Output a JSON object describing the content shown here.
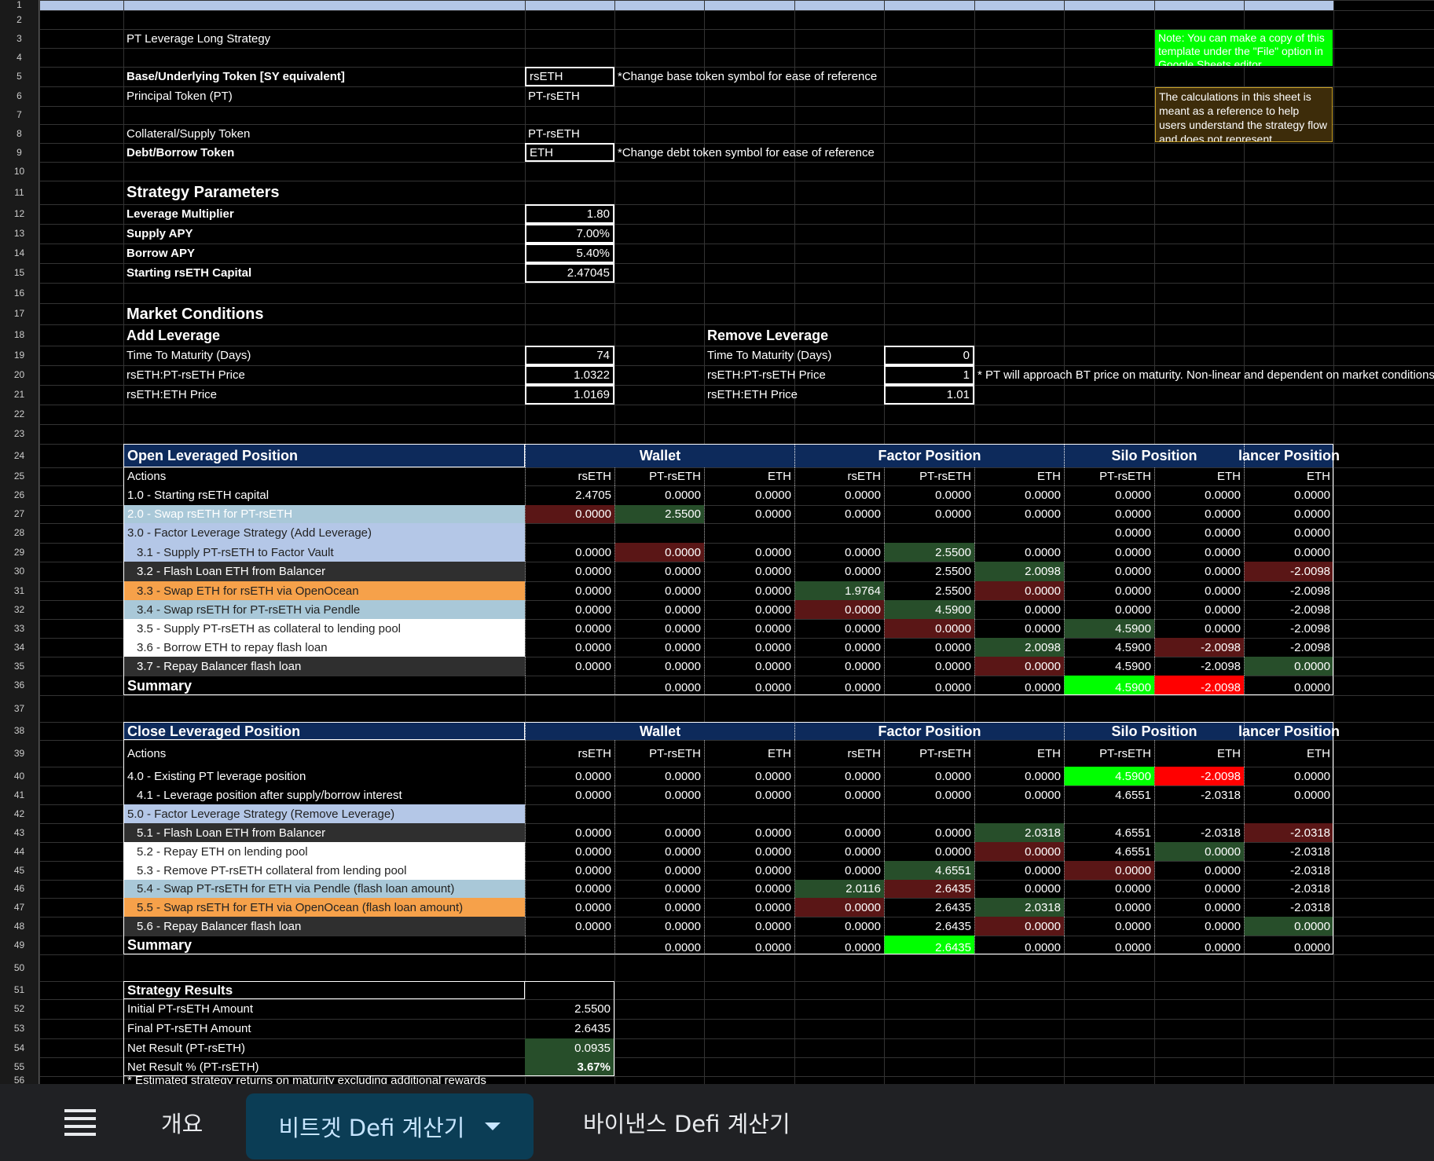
{
  "sheet": {
    "title": "PT Leverage Long Strategy",
    "note_green": "Note: You can make a copy of this template under the \"File\" option in Google Sheets editor",
    "note_brown": "The calculations in this sheet is meant as a reference to help users understand the strategy flow and does not represent",
    "labels": {
      "base_token": "Base/Underlying Token [SY equivalent]",
      "principal_token": "Principal Token (PT)",
      "collateral_token": "Collateral/Supply Token",
      "debt_token": "Debt/Borrow Token",
      "strategy_params": "Strategy Parameters",
      "leverage_multiplier": "Leverage Multiplier",
      "supply_apy": "Supply APY",
      "borrow_apy": "Borrow APY",
      "starting_capital": "Starting rsETH Capital",
      "market_conditions": "Market Conditions",
      "add_leverage": "Add Leverage",
      "remove_leverage": "Remove Leverage",
      "time_to_maturity": "Time To Maturity (Days)",
      "pt_price": "rsETH:PT-rsETH Price",
      "eth_price": "rsETH:ETH Price"
    },
    "values": {
      "base_token": "rsETH",
      "principal_token": "PT-rsETH",
      "collateral_token": "PT-rsETH",
      "debt_token": "ETH",
      "leverage_multiplier": "1.80",
      "supply_apy": "7.00%",
      "borrow_apy": "5.40%",
      "starting_capital": "2.47045",
      "add_time": "74",
      "add_pt_price": "1.0322",
      "add_eth_price": "1.0169",
      "rem_time": "0",
      "rem_pt_price": "1",
      "rem_eth_price": "1.01"
    },
    "notes": {
      "base_note": "*Change base token symbol for ease of reference",
      "debt_note": "*Change debt token symbol for ease of reference",
      "pt_note": "* PT will approach BT price on maturity. Non-linear and dependent on market conditions"
    }
  },
  "open_table": {
    "title": "Open Leveraged Position",
    "groups": [
      "Wallet",
      "Factor Position",
      "Silo Position",
      "lancer Position"
    ],
    "actions_label": "Actions",
    "columns": [
      "rsETH",
      "PT-rsETH",
      "ETH",
      "rsETH",
      "PT-rsETH",
      "ETH",
      "PT-rsETH",
      "ETH",
      "ETH"
    ],
    "rows": [
      {
        "label": "1.0 - Starting rsETH capital",
        "values": [
          "2.4705",
          "0.0000",
          "0.0000",
          "0.0000",
          "0.0000",
          "0.0000",
          "0.0000",
          "0.0000",
          "0.0000"
        ]
      },
      {
        "label": "2.0 - Swap rsETH for PT-rsETH",
        "values": [
          "0.0000",
          "2.5500",
          "0.0000",
          "0.0000",
          "0.0000",
          "0.0000",
          "0.0000",
          "0.0000",
          "0.0000"
        ]
      },
      {
        "label": "3.0 - Factor Leverage Strategy (Add Leverage)",
        "values": [
          "",
          "",
          "",
          "",
          "",
          "",
          "0.0000",
          "0.0000",
          "0.0000"
        ]
      },
      {
        "label": "3.1 - Supply PT-rsETH to Factor Vault",
        "values": [
          "0.0000",
          "0.0000",
          "0.0000",
          "0.0000",
          "2.5500",
          "0.0000",
          "0.0000",
          "0.0000",
          "0.0000"
        ]
      },
      {
        "label": "3.2 - Flash Loan ETH from Balancer",
        "values": [
          "0.0000",
          "0.0000",
          "0.0000",
          "0.0000",
          "2.5500",
          "2.0098",
          "0.0000",
          "0.0000",
          "-2.0098"
        ]
      },
      {
        "label": "3.3 - Swap ETH for rsETH via OpenOcean",
        "values": [
          "0.0000",
          "0.0000",
          "0.0000",
          "1.9764",
          "2.5500",
          "0.0000",
          "0.0000",
          "0.0000",
          "-2.0098"
        ]
      },
      {
        "label": "3.4 - Swap rsETH for PT-rsETH via Pendle",
        "values": [
          "0.0000",
          "0.0000",
          "0.0000",
          "0.0000",
          "4.5900",
          "0.0000",
          "0.0000",
          "0.0000",
          "-2.0098"
        ]
      },
      {
        "label": "3.5 - Supply PT-rsETH as collateral to lending pool",
        "values": [
          "0.0000",
          "0.0000",
          "0.0000",
          "0.0000",
          "0.0000",
          "0.0000",
          "4.5900",
          "0.0000",
          "-2.0098"
        ]
      },
      {
        "label": "3.6 - Borrow ETH to repay flash loan",
        "values": [
          "0.0000",
          "0.0000",
          "0.0000",
          "0.0000",
          "0.0000",
          "2.0098",
          "4.5900",
          "-2.0098",
          "-2.0098"
        ]
      },
      {
        "label": "3.7 - Repay Balancer flash loan",
        "values": [
          "0.0000",
          "0.0000",
          "0.0000",
          "0.0000",
          "0.0000",
          "0.0000",
          "4.5900",
          "-2.0098",
          "0.0000"
        ]
      }
    ],
    "summary": {
      "label": "Summary",
      "values": [
        "",
        "0.0000",
        "0.0000",
        "0.0000",
        "0.0000",
        "0.0000",
        "4.5900",
        "-2.0098",
        "0.0000"
      ]
    }
  },
  "close_table": {
    "title": "Close Leveraged Position",
    "groups": [
      "Wallet",
      "Factor Position",
      "Silo Position",
      "lancer Position"
    ],
    "actions_label": "Actions",
    "columns": [
      "rsETH",
      "PT-rsETH",
      "ETH",
      "rsETH",
      "PT-rsETH",
      "ETH",
      "PT-rsETH",
      "ETH",
      "ETH"
    ],
    "rows": [
      {
        "label": "4.0 - Existing PT leverage position",
        "values": [
          "0.0000",
          "0.0000",
          "0.0000",
          "0.0000",
          "0.0000",
          "0.0000",
          "4.5900",
          "-2.0098",
          "0.0000"
        ]
      },
      {
        "label": "4.1 - Leverage position after supply/borrow interest",
        "values": [
          "0.0000",
          "0.0000",
          "0.0000",
          "0.0000",
          "0.0000",
          "0.0000",
          "4.6551",
          "-2.0318",
          "0.0000"
        ]
      },
      {
        "label": "5.0 - Factor Leverage Strategy (Remove Leverage)",
        "values": [
          "",
          "",
          "",
          "",
          "",
          "",
          "",
          "",
          ""
        ]
      },
      {
        "label": "5.1 - Flash Loan ETH from Balancer",
        "values": [
          "0.0000",
          "0.0000",
          "0.0000",
          "0.0000",
          "0.0000",
          "2.0318",
          "4.6551",
          "-2.0318",
          "-2.0318"
        ]
      },
      {
        "label": "5.2 - Repay ETH on lending pool",
        "values": [
          "0.0000",
          "0.0000",
          "0.0000",
          "0.0000",
          "0.0000",
          "0.0000",
          "4.6551",
          "0.0000",
          "-2.0318"
        ]
      },
      {
        "label": "5.3 - Remove PT-rsETH collateral from lending pool",
        "values": [
          "0.0000",
          "0.0000",
          "0.0000",
          "0.0000",
          "4.6551",
          "0.0000",
          "0.0000",
          "0.0000",
          "-2.0318"
        ]
      },
      {
        "label": "5.4 - Swap PT-rsETH for ETH via Pendle (flash loan amount)",
        "values": [
          "0.0000",
          "0.0000",
          "0.0000",
          "2.0116",
          "2.6435",
          "0.0000",
          "0.0000",
          "0.0000",
          "-2.0318"
        ]
      },
      {
        "label": "5.5 - Swap rsETH for ETH via OpenOcean (flash loan amount)",
        "values": [
          "0.0000",
          "0.0000",
          "0.0000",
          "0.0000",
          "2.6435",
          "2.0318",
          "0.0000",
          "0.0000",
          "-2.0318"
        ]
      },
      {
        "label": "5.6 - Repay Balancer flash loan",
        "values": [
          "0.0000",
          "0.0000",
          "0.0000",
          "0.0000",
          "2.6435",
          "0.0000",
          "0.0000",
          "0.0000",
          "0.0000"
        ]
      }
    ],
    "summary": {
      "label": "Summary",
      "values": [
        "",
        "0.0000",
        "0.0000",
        "0.0000",
        "2.6435",
        "0.0000",
        "0.0000",
        "0.0000",
        "0.0000"
      ]
    }
  },
  "results": {
    "title": "Strategy Results",
    "rows": [
      {
        "label": "Initial PT-rsETH Amount",
        "value": "2.5500"
      },
      {
        "label": "Final PT-rsETH Amount",
        "value": "2.6435"
      },
      {
        "label": "Net Result (PT-rsETH)",
        "value": "0.0935"
      },
      {
        "label": "Net Result % (PT-rsETH)",
        "value": "3.67%"
      }
    ],
    "footnote": "* Estimated strategy returns on maturity excluding additional rewards"
  },
  "row_numbers": [
    "1",
    "2",
    "3",
    "4",
    "5",
    "6",
    "7",
    "8",
    "9",
    "10",
    "11",
    "12",
    "13",
    "14",
    "15",
    "16",
    "17",
    "18",
    "19",
    "20",
    "21",
    "22",
    "23",
    "24",
    "25",
    "26",
    "27",
    "28",
    "29",
    "30",
    "31",
    "32",
    "33",
    "34",
    "35",
    "36",
    "37",
    "38",
    "39",
    "40",
    "41",
    "42",
    "43",
    "44",
    "45",
    "46",
    "47",
    "48",
    "49",
    "50",
    "51",
    "52",
    "53",
    "54",
    "55",
    "56"
  ],
  "tabs": {
    "menu_icon": "menu-icon",
    "items": [
      "개요",
      "비트겟 Defi 계산기",
      "바이낸스 Defi 계산기"
    ],
    "active": "비트겟 Defi 계산기"
  },
  "colors": {
    "header_navy": "#0d2a5b",
    "light_blue": "#a9c8d8",
    "lavender": "#b4c7e7",
    "orange": "#f6a14a",
    "dark_gray": "#2f2f2f",
    "white": "#ffffff",
    "bright_green": "#00ff00",
    "bright_red": "#ff0000",
    "dark_red": "#5a1616",
    "dark_green": "#274e2a",
    "tab_active": "#0b3d55"
  }
}
